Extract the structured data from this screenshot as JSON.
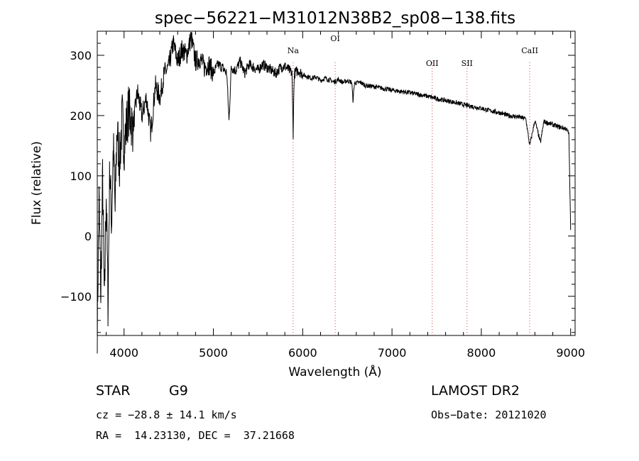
{
  "chart_data": {
    "type": "line",
    "title": "spec−56221−M31012N38B2_sp08−138.fits",
    "xlabel": "Wavelength (Å)",
    "ylabel": "Flux (relative)",
    "xlim": [
      3700,
      9050
    ],
    "ylim": [
      -165,
      340
    ],
    "xticks": [
      4000,
      5000,
      6000,
      7000,
      8000,
      9000
    ],
    "xtick_labels": [
      "4000",
      "5000",
      "6000",
      "7000",
      "8000",
      "9000"
    ],
    "yticks": [
      -100,
      0,
      100,
      200,
      300
    ],
    "ytick_labels": [
      "−100",
      "0",
      "100",
      "200",
      "300"
    ],
    "grid": false,
    "series": [
      {
        "x": [
          3700,
          3720,
          3740,
          3760,
          3780,
          3800,
          3820,
          3840,
          3860,
          3880,
          3900,
          3920,
          3950,
          3980,
          4000,
          4050,
          4100,
          4150,
          4200,
          4250,
          4300,
          4350,
          4400,
          4450,
          4500,
          4550,
          4600,
          4650,
          4700,
          4750,
          4800,
          4850,
          4900,
          4950,
          5000,
          5050,
          5100,
          5150,
          5175,
          5200,
          5250,
          5300,
          5350,
          5400,
          5450,
          5500,
          5550,
          5600,
          5650,
          5700,
          5750,
          5800,
          5850,
          5880,
          5893,
          5905,
          5920,
          5950,
          6000,
          6050,
          6100,
          6150,
          6200,
          6250,
          6300,
          6350,
          6400,
          6450,
          6500,
          6550,
          6563,
          6580,
          6650,
          6700,
          6800,
          6900,
          7000,
          7100,
          7200,
          7300,
          7400,
          7500,
          7600,
          7700,
          7800,
          7900,
          8000,
          8100,
          8200,
          8300,
          8400,
          8498,
          8542,
          8600,
          8662,
          8700,
          8800,
          8850,
          8900,
          8950,
          8980,
          9000
        ],
        "y": [
          -150,
          60,
          -100,
          100,
          -120,
          80,
          -110,
          120,
          20,
          150,
          40,
          180,
          120,
          200,
          150,
          210,
          180,
          240,
          200,
          230,
          170,
          250,
          230,
          270,
          280,
          320,
          290,
          310,
          300,
          330,
          290,
          295,
          280,
          285,
          270,
          285,
          280,
          270,
          190,
          280,
          275,
          290,
          270,
          285,
          280,
          275,
          285,
          280,
          275,
          270,
          280,
          282,
          275,
          270,
          170,
          268,
          272,
          275,
          268,
          265,
          262,
          264,
          258,
          262,
          259,
          256,
          260,
          255,
          258,
          255,
          225,
          254,
          255,
          250,
          248,
          245,
          242,
          240,
          238,
          235,
          232,
          228,
          225,
          222,
          218,
          215,
          212,
          208,
          205,
          200,
          198,
          195,
          150,
          192,
          155,
          190,
          185,
          182,
          180,
          178,
          170,
          10
        ]
      }
    ],
    "lines": [
      {
        "label": "Na",
        "x": 5893
      },
      {
        "label": "OI",
        "x": 6364
      },
      {
        "label": "OII",
        "x": 7450
      },
      {
        "label": "SII",
        "x": 7840
      },
      {
        "label": "CaII",
        "x": 8542
      }
    ]
  },
  "footer": {
    "class_label": "STAR",
    "subclass_label": "G9",
    "survey_label": "LAMOST DR2",
    "cz_text": "cz = −28.8 ± 14.1 km/s",
    "obs_date_text": "Obs−Date: 20121020",
    "radec_text": "RA =  14.23130, DEC =  37.21668"
  }
}
